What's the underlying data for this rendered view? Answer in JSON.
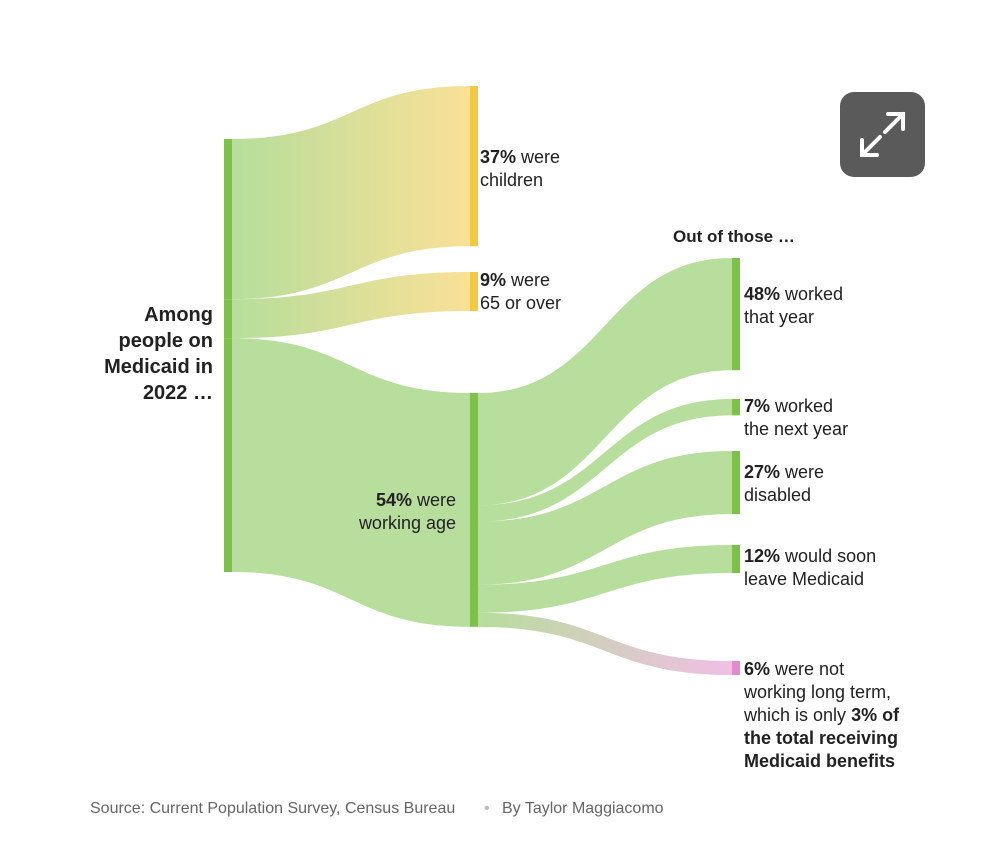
{
  "chart_data": {
    "type": "sankey",
    "source_label": "Among people on Medicaid in 2022 …",
    "source_color": "#7cc24a",
    "level1": {
      "values": [
        37,
        9,
        54
      ],
      "value_labels": [
        "37%",
        "9%",
        "54%"
      ],
      "labels": [
        "were children",
        "were 65 or over",
        "were working age"
      ],
      "colors": [
        "#f5c842",
        "#f5c842",
        "#7cc24a"
      ]
    },
    "level2": {
      "heading": "Out of those …",
      "parent": 2,
      "values": [
        48,
        7,
        27,
        12,
        6
      ],
      "value_labels": [
        "48%",
        "7%",
        "27%",
        "12%",
        "6%"
      ],
      "labels": [
        "worked that year",
        "worked the next year",
        "were disabled",
        "would soon leave Medicaid",
        "were not working long term, which is only"
      ],
      "colors": [
        "#7cc24a",
        "#7cc24a",
        "#7cc24a",
        "#7cc24a",
        "#e48ad0"
      ],
      "note": {
        "value": 3,
        "value_label": "3%",
        "label": "of the total receiving Medicaid benefits"
      }
    },
    "source": "Source: Current Population Survey, Census Bureau",
    "byline": "By Taylor Maggiacomo"
  }
}
